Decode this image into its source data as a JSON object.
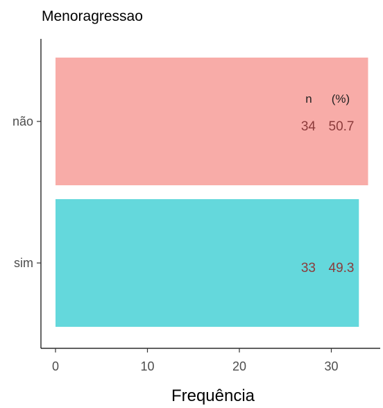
{
  "chart_data": {
    "type": "bar",
    "orientation": "horizontal",
    "title": "Menoragressao",
    "xlabel": "Frequência",
    "ylabel": "",
    "categories": [
      "não",
      "sim"
    ],
    "values": [
      34,
      33
    ],
    "percent_labels": [
      "50.7",
      "49.3"
    ],
    "label_headers": {
      "n": "n",
      "pct": "(%)"
    },
    "xlim": [
      0,
      34
    ],
    "x_ticks": [
      0,
      10,
      20,
      30
    ],
    "colors": [
      "#f8aca8",
      "#64d8dc"
    ],
    "grid": false,
    "legend": "none"
  }
}
